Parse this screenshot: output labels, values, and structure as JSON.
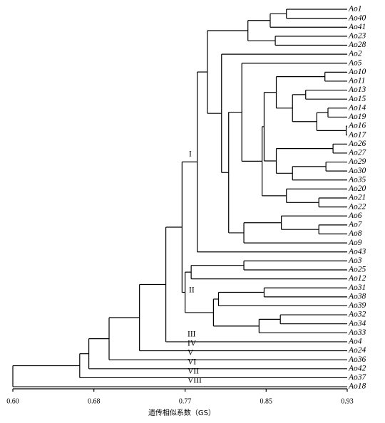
{
  "chart_data": {
    "type": "dendrogram",
    "x_label": "遗传相似系数（GS）",
    "xlim": [
      0.6,
      0.93
    ],
    "xticks": [
      {
        "value": 0.6,
        "label": "0.60"
      },
      0.68,
      0.77,
      0.85,
      0.93
    ],
    "groups": [
      "I",
      "II",
      "III",
      "IV",
      "V",
      "VI",
      "VII",
      "VIII"
    ],
    "tree": {
      "height": 0.6,
      "children": [
        {
          "height": 0.666,
          "children": [
            {
              "height": 0.675,
              "children": [
                {
                  "height": 0.695,
                  "children": [
                    {
                      "height": 0.725,
                      "children": [
                        {
                          "height": 0.751,
                          "children": [
                            {
                              "height": 0.767,
                              "children": [
                                {
                                  "height": 0.782,
                                  "children": [
                                    {
                                      "height": 0.792,
                                      "children": [
                                        {
                                          "height": 0.832,
                                          "children": [
                                            {
                                              "height": 0.854,
                                              "children": [
                                                {
                                                  "height": 0.87,
                                                  "children": [
                                                    "Ao1",
                                                    "Ao40"
                                                  ]
                                                },
                                                "Ao41"
                                              ]
                                            },
                                            {
                                              "height": 0.859,
                                              "children": [
                                                "Ao23",
                                                "Ao28"
                                              ]
                                            }
                                          ]
                                        },
                                        {
                                          "height": 0.806,
                                          "children": [
                                            "Ao2",
                                            {
                                              "height": 0.813,
                                              "children": [
                                                {
                                                  "height": 0.826,
                                                  "children": [
                                                    "Ao5",
                                                    {
                                                      "height": 0.846,
                                                      "children": [
                                                        {
                                                          "height": 0.848,
                                                          "children": [
                                                            {
                                                              "height": 0.86,
                                                              "children": [
                                                                {
                                                                  "height": 0.908,
                                                                  "children": [
                                                                    "Ao10",
                                                                    "Ao11"
                                                                  ]
                                                                },
                                                                {
                                                                  "height": 0.876,
                                                                  "children": [
                                                                    {
                                                                      "height": 0.889,
                                                                      "children": [
                                                                        "Ao13",
                                                                        "Ao15"
                                                                      ]
                                                                    },
                                                                    {
                                                                      "height": 0.9,
                                                                      "children": [
                                                                        {
                                                                          "height": 0.911,
                                                                          "children": [
                                                                            "Ao14",
                                                                            "Ao19"
                                                                          ]
                                                                        },
                                                                        {
                                                                          "height": 0.929,
                                                                          "children": [
                                                                            "Ao16",
                                                                            "Ao17"
                                                                          ]
                                                                        }
                                                                      ]
                                                                    }
                                                                  ]
                                                                }
                                                              ]
                                                            },
                                                            {
                                                              "height": 0.86,
                                                              "children": [
                                                                {
                                                                  "height": 0.916,
                                                                  "children": [
                                                                    "Ao26",
                                                                    "Ao27"
                                                                  ]
                                                                },
                                                                {
                                                                  "height": 0.876,
                                                                  "children": [
                                                                    {
                                                                      "height": 0.909,
                                                                      "children": [
                                                                        "Ao29",
                                                                        "Ao30"
                                                                      ]
                                                                    },
                                                                    "Ao35"
                                                                  ]
                                                                }
                                                              ]
                                                            }
                                                          ]
                                                        },
                                                        {
                                                          "height": 0.87,
                                                          "children": [
                                                            "Ao20",
                                                            {
                                                              "height": 0.902,
                                                              "children": [
                                                                "Ao21",
                                                                "Ao22"
                                                              ]
                                                            }
                                                          ]
                                                        }
                                                      ]
                                                    }
                                                  ]
                                                },
                                                {
                                                  "height": 0.828,
                                                  "children": [
                                                    {
                                                      "height": 0.865,
                                                      "children": [
                                                        "Ao6",
                                                        {
                                                          "height": 0.902,
                                                          "children": [
                                                            "Ao7",
                                                            "Ao8"
                                                          ]
                                                        }
                                                      ]
                                                    },
                                                    "Ao9"
                                                  ]
                                                }
                                              ]
                                            }
                                          ]
                                        }
                                      ]
                                    },
                                    "Ao43"
                                  ]
                                },
                                {
                                  "height": 0.77,
                                  "children": [
                                    {
                                      "height": 0.776,
                                      "children": [
                                        {
                                          "height": 0.828,
                                          "children": [
                                            "Ao3",
                                            "Ao25"
                                          ]
                                        },
                                        "Ao12"
                                      ]
                                    },
                                    {
                                      "height": 0.798,
                                      "children": [
                                        {
                                          "height": 0.803,
                                          "children": [
                                            {
                                              "height": 0.848,
                                              "children": [
                                                "Ao31",
                                                "Ao38"
                                              ]
                                            },
                                            "Ao39"
                                          ]
                                        },
                                        {
                                          "height": 0.843,
                                          "children": [
                                            {
                                              "height": 0.864,
                                              "children": [
                                                "Ao32",
                                                "Ao34"
                                              ]
                                            },
                                            "Ao33"
                                          ]
                                        }
                                      ]
                                    }
                                  ]
                                }
                              ]
                            },
                            "Ao4"
                          ]
                        },
                        "Ao24"
                      ]
                    },
                    "Ao36"
                  ]
                },
                "Ao42"
              ]
            },
            "Ao37"
          ]
        },
        "Ao18"
      ]
    }
  }
}
